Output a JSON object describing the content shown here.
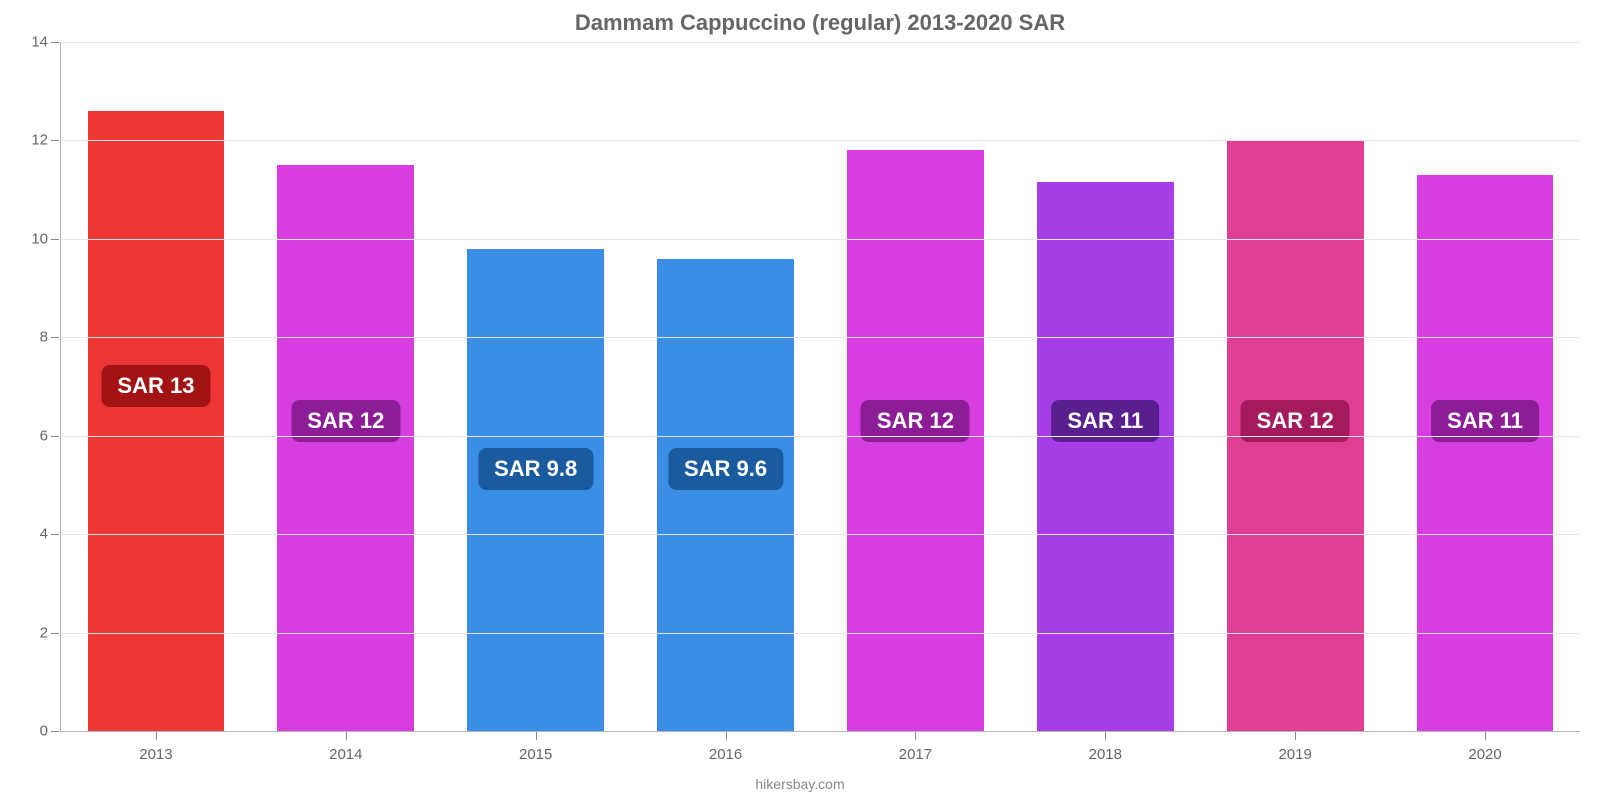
{
  "chart": {
    "type": "bar",
    "title": "Dammam Cappuccino (regular) 2013-2020 SAR",
    "title_fontsize": 22,
    "title_color": "#666666",
    "background_color": "#ffffff",
    "grid_color": "#e6e6e6",
    "axis_color": "#b5b5b5",
    "tick_color": "#888888",
    "label_color": "#666666",
    "label_fontsize": 15,
    "y": {
      "min": 0,
      "max": 14,
      "tick_step": 2,
      "ticks": [
        0,
        2,
        4,
        6,
        8,
        10,
        12,
        14
      ]
    },
    "bar_width_ratio": 0.72,
    "pill_fontsize": 22,
    "pill_text_color": "#ffffff",
    "pill_border_radius": 8,
    "data": [
      {
        "x": "2013",
        "value": 12.6,
        "bar_color": "#ef3636",
        "pill_bg": "#a31313",
        "label": "SAR 13",
        "pill_bottom_frac": 0.47
      },
      {
        "x": "2014",
        "value": 11.5,
        "bar_color": "#d63ee0",
        "pill_bg": "#8d1d97",
        "label": "SAR 12",
        "pill_bottom_frac": 0.42
      },
      {
        "x": "2015",
        "value": 9.8,
        "bar_color": "#3a8ee6",
        "pill_bg": "#1a5a9e",
        "label": "SAR 9.8",
        "pill_bottom_frac": 0.35
      },
      {
        "x": "2016",
        "value": 9.6,
        "bar_color": "#3a8ee6",
        "pill_bg": "#1a5a9e",
        "label": "SAR 9.6",
        "pill_bottom_frac": 0.35
      },
      {
        "x": "2017",
        "value": 11.8,
        "bar_color": "#d63ee0",
        "pill_bg": "#8d1d97",
        "label": "SAR 12",
        "pill_bottom_frac": 0.42
      },
      {
        "x": "2018",
        "value": 11.15,
        "bar_color": "#a63ee6",
        "pill_bg": "#5a1f8f",
        "label": "SAR 11",
        "pill_bottom_frac": 0.42
      },
      {
        "x": "2019",
        "value": 12.0,
        "bar_color": "#e03e92",
        "pill_bg": "#a31a5d",
        "label": "SAR 12",
        "pill_bottom_frac": 0.42
      },
      {
        "x": "2020",
        "value": 11.3,
        "bar_color": "#d63ee0",
        "pill_bg": "#8d1d97",
        "label": "SAR 11",
        "pill_bottom_frac": 0.42
      }
    ],
    "credit": "hikersbay.com",
    "credit_color": "#888888",
    "credit_fontsize": 14
  }
}
